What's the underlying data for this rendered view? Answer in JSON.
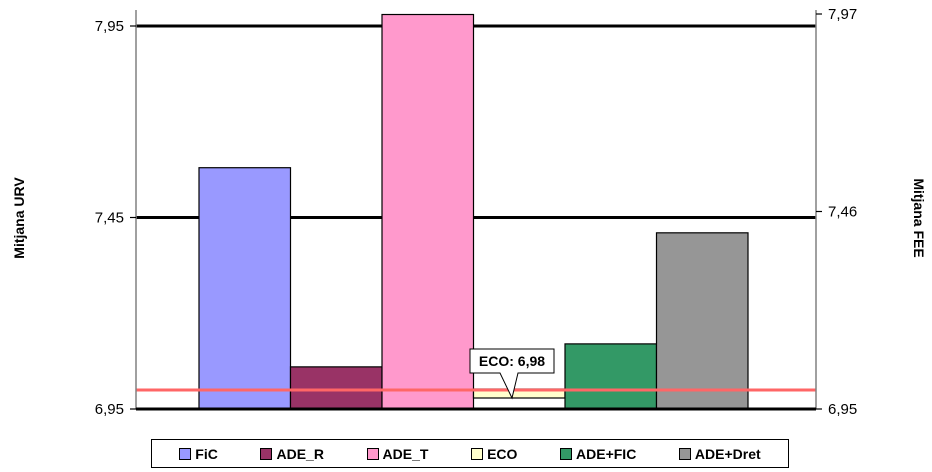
{
  "chart_data": {
    "type": "bar",
    "categories": [
      "FiC",
      "ADE_R",
      "ADE_T",
      "ECO",
      "ADE+FIC",
      "ADE+Dret"
    ],
    "values": [
      7.58,
      7.06,
      7.98,
      6.98,
      7.12,
      7.41
    ],
    "colors": [
      "#9999ff",
      "#993366",
      "#ff99cc",
      "#ffffcc",
      "#339966",
      "#969696"
    ],
    "ylabel": "Mitjana URV",
    "y2label": "Mitjana FEE",
    "ylim": [
      6.95,
      8.0
    ],
    "y_ticks": [
      "6,95",
      "7,45",
      "7,95"
    ],
    "y_tick_values": [
      6.95,
      7.45,
      7.95
    ],
    "y2_ticks": [
      "6,95",
      "7,46",
      "7,97"
    ],
    "y2_tick_values": [
      6.95,
      7.46,
      7.97
    ],
    "gridlines": true,
    "reference_line": {
      "value": 7.0,
      "color": "#ff6666"
    },
    "annotation": {
      "text": "ECO: 6,98",
      "target": "ECO"
    },
    "legend": {
      "position": "bottom"
    }
  }
}
